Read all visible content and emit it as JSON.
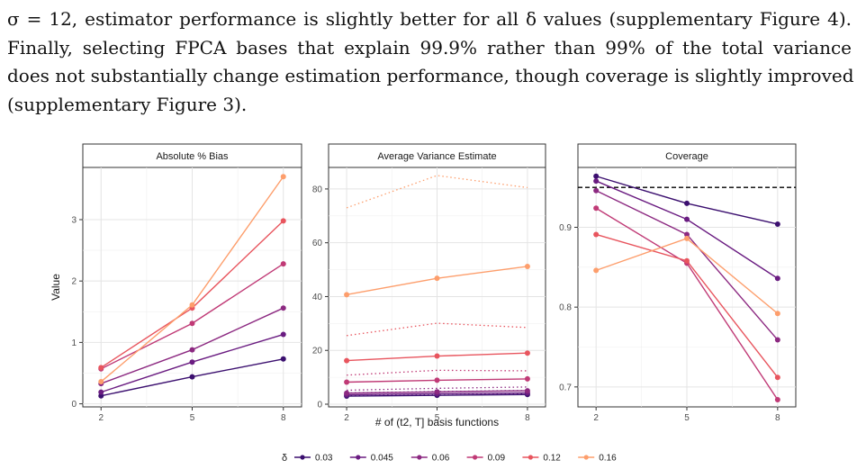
{
  "text": {
    "lines": [
      "σ = 12, estimator performance is slightly better for all δ values (supplementary Figure 4).",
      "Finally, selecting FPCA bases that explain 99.9% rather than 99% of the total variance",
      "does not substantially change estimation performance, though coverage is slightly improved",
      "(supplementary Figure 3)."
    ]
  },
  "chart_data": {
    "type": "line",
    "x": [
      2,
      5,
      8
    ],
    "xlabel": "# of (t2, T] basis functions",
    "ylabel": "Value",
    "legend": {
      "title": "δ",
      "position": "bottom",
      "entries": [
        "0.03",
        "0.045",
        "0.06",
        "0.09",
        "0.12",
        "0.16"
      ],
      "colors": [
        "#3b0f6f",
        "#6a1c81",
        "#8c2981",
        "#c03a76",
        "#e8555e",
        "#fd9e6c"
      ]
    },
    "panels": [
      {
        "title": "Absolute % Bias",
        "ylim": [
          -0.05,
          3.85
        ],
        "yticks": [
          0,
          1,
          2,
          3
        ],
        "series": [
          {
            "delta": "0.03",
            "values": [
              0.13,
              0.44,
              0.73
            ]
          },
          {
            "delta": "0.045",
            "values": [
              0.19,
              0.68,
              1.13
            ]
          },
          {
            "delta": "0.06",
            "values": [
              0.33,
              0.88,
              1.56
            ]
          },
          {
            "delta": "0.09",
            "values": [
              0.57,
              1.31,
              2.28
            ]
          },
          {
            "delta": "0.12",
            "values": [
              0.59,
              1.56,
              2.98
            ]
          },
          {
            "delta": "0.16",
            "values": [
              0.36,
              1.61,
              3.7
            ]
          }
        ]
      },
      {
        "title": "Average Variance Estimate",
        "ylim": [
          -1,
          88
        ],
        "yticks": [
          0,
          20,
          40,
          60,
          80
        ],
        "series": [
          {
            "delta": "0.03",
            "values": [
              3.0,
              3.3,
              3.6
            ]
          },
          {
            "delta": "0.045",
            "values": [
              3.5,
              3.9,
              4.2
            ]
          },
          {
            "delta": "0.06",
            "values": [
              4.1,
              4.6,
              5.0
            ]
          },
          {
            "delta": "0.09",
            "values": [
              8.2,
              8.9,
              9.4
            ]
          },
          {
            "delta": "0.12",
            "values": [
              16.2,
              17.9,
              19.0
            ]
          },
          {
            "delta": "0.16",
            "values": [
              40.7,
              46.8,
              51.2
            ]
          }
        ],
        "dotted_series": [
          {
            "delta": "0.03",
            "values": [
              3.4,
              3.8,
              4.1
            ]
          },
          {
            "delta": "0.045",
            "values": [
              4.2,
              4.7,
              5.1
            ]
          },
          {
            "delta": "0.06",
            "values": [
              5.2,
              5.9,
              6.4
            ]
          },
          {
            "delta": "0.09",
            "values": [
              10.8,
              12.6,
              12.4
            ]
          },
          {
            "delta": "0.12",
            "values": [
              25.5,
              30.1,
              28.5
            ]
          },
          {
            "delta": "0.16",
            "values": [
              73.0,
              85.0,
              80.5
            ]
          }
        ]
      },
      {
        "title": "Coverage",
        "ylim": [
          0.675,
          0.975
        ],
        "yticks": [
          0.7,
          0.8,
          0.9
        ],
        "reference_line": 0.95,
        "series": [
          {
            "delta": "0.03",
            "values": [
              0.964,
              0.93,
              0.904
            ]
          },
          {
            "delta": "0.045",
            "values": [
              0.958,
              0.91,
              0.836
            ]
          },
          {
            "delta": "0.06",
            "values": [
              0.946,
              0.891,
              0.759
            ]
          },
          {
            "delta": "0.09",
            "values": [
              0.924,
              0.855,
              0.684
            ]
          },
          {
            "delta": "0.12",
            "values": [
              0.891,
              0.858,
              0.712
            ]
          },
          {
            "delta": "0.16",
            "values": [
              0.846,
              0.886,
              0.792
            ]
          }
        ]
      }
    ]
  }
}
